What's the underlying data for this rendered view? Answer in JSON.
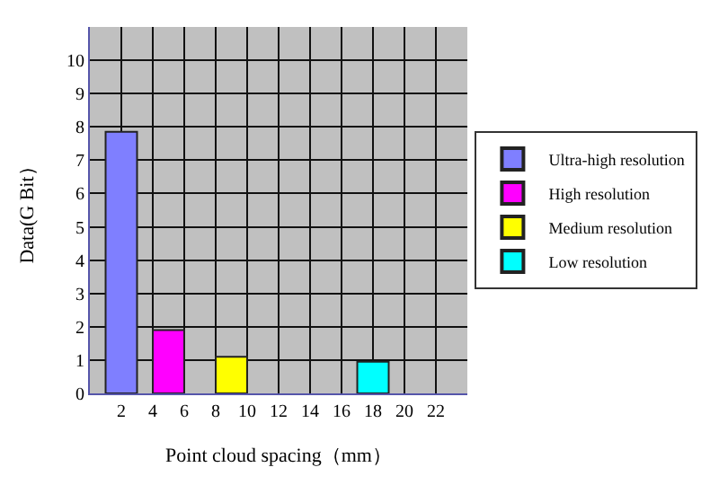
{
  "chart_data": {
    "type": "bar",
    "xlabel": "Point cloud spacing（mm）",
    "ylabel": "Data(G Bit）",
    "xlim": [
      0,
      24
    ],
    "xticks": [
      2,
      4,
      6,
      8,
      10,
      12,
      14,
      16,
      18,
      20,
      22
    ],
    "ylim": [
      0,
      11
    ],
    "yticks": [
      0,
      1,
      2,
      3,
      4,
      5,
      6,
      7,
      8,
      9,
      10
    ],
    "grid": true,
    "legend": "right",
    "series": [
      {
        "name": "Ultra-high resolution",
        "color": "#7f7fff",
        "x": [
          2
        ],
        "values": [
          7.85
        ]
      },
      {
        "name": "High resolution",
        "color": "#ff00ff",
        "x": [
          5
        ],
        "values": [
          1.9
        ]
      },
      {
        "name": "Medium resolution",
        "color": "#ffff00",
        "x": [
          9
        ],
        "values": [
          1.1
        ]
      },
      {
        "name": "Low resolution",
        "color": "#00ffff",
        "x": [
          18
        ],
        "values": [
          0.95
        ]
      }
    ]
  }
}
